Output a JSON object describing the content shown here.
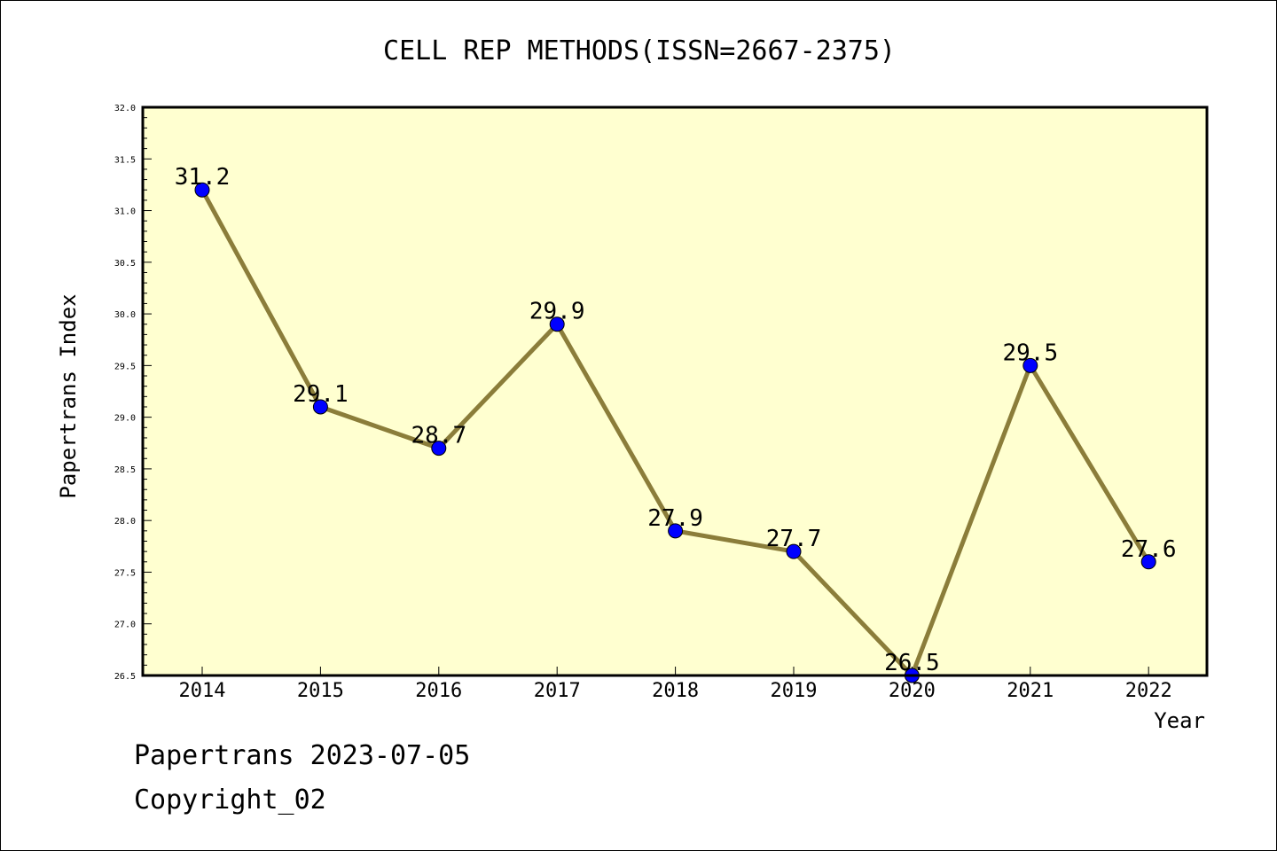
{
  "chart_data": {
    "type": "line",
    "title": "CELL REP METHODS(ISSN=2667-2375)",
    "xlabel": "Year",
    "ylabel": "Papertrans Index",
    "categories": [
      "2014",
      "2015",
      "2016",
      "2017",
      "2018",
      "2019",
      "2020",
      "2021",
      "2022"
    ],
    "values": [
      31.2,
      29.1,
      28.7,
      29.9,
      27.9,
      27.7,
      26.5,
      29.5,
      27.6
    ],
    "data_labels": [
      "31.2",
      "29.1",
      "28.7",
      "29.9",
      "27.9",
      "27.7",
      "26.5",
      "29.5",
      "27.6"
    ],
    "ylim": [
      26.5,
      32.0
    ],
    "yticks": [
      "26.5",
      "27.0",
      "27.5",
      "28.0",
      "28.5",
      "29.0",
      "29.5",
      "30.0",
      "30.5",
      "31.0",
      "31.5",
      "32.0"
    ],
    "grid": false,
    "colors": {
      "line": "#8B7D3A",
      "marker": "#0000FF",
      "plot_bg": "#FFFFD0"
    }
  },
  "footer": {
    "line1": "Papertrans 2023-07-05",
    "line2": "Copyright_02"
  }
}
